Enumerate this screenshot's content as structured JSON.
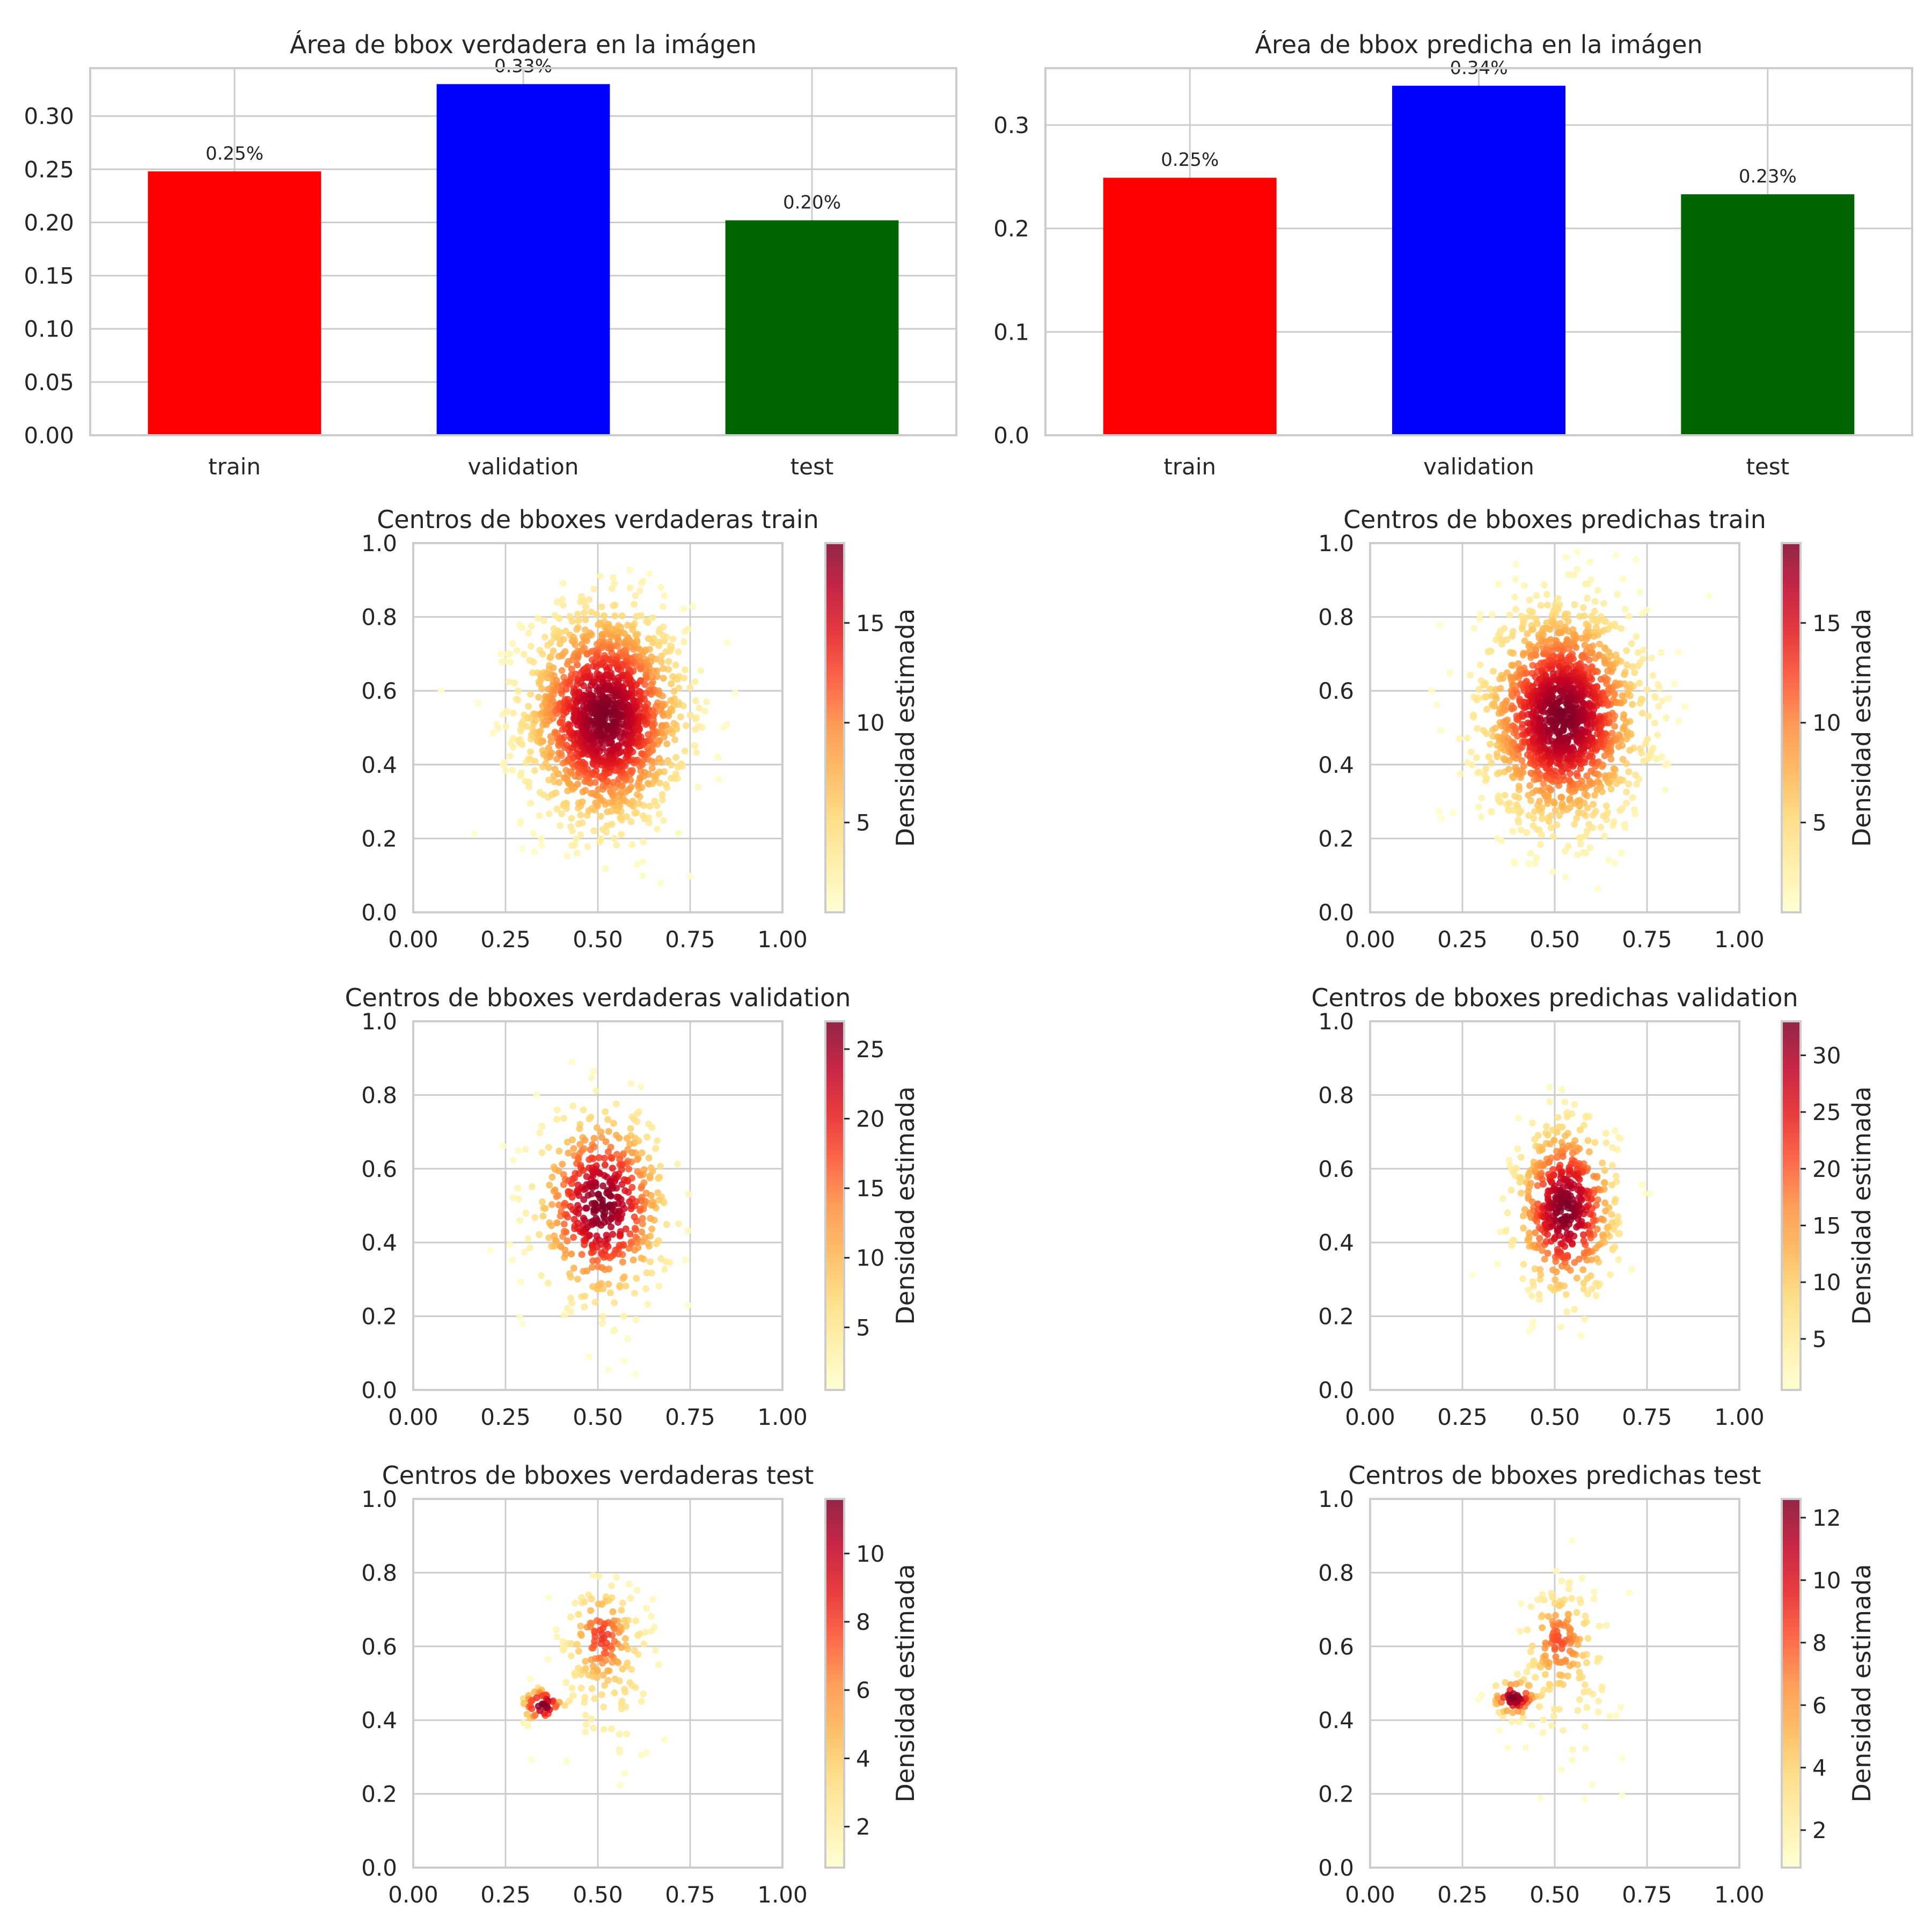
{
  "chart_data": [
    {
      "id": "area-true",
      "type": "bar",
      "title": "Área de bbox verdadera en la imágen",
      "categories": [
        "train",
        "validation",
        "test"
      ],
      "values": [
        0.248,
        0.33,
        0.202
      ],
      "value_labels": [
        "0.25%",
        "0.33%",
        "0.20%"
      ],
      "colors": [
        "#ff0000",
        "#0000ff",
        "#006400"
      ],
      "ylim": [
        0,
        0.345
      ],
      "yticks": [
        0.0,
        0.05,
        0.1,
        0.15,
        0.2,
        0.25,
        0.3
      ],
      "ytick_labels": [
        "0.00",
        "0.05",
        "0.10",
        "0.15",
        "0.20",
        "0.25",
        "0.30"
      ],
      "grid": true
    },
    {
      "id": "area-pred",
      "type": "bar",
      "title": "Área de bbox predicha en la imágen",
      "categories": [
        "train",
        "validation",
        "test"
      ],
      "values": [
        0.249,
        0.338,
        0.233
      ],
      "value_labels": [
        "0.25%",
        "0.34%",
        "0.23%"
      ],
      "colors": [
        "#ff0000",
        "#0000ff",
        "#006400"
      ],
      "ylim": [
        0,
        0.355
      ],
      "yticks": [
        0.0,
        0.1,
        0.2,
        0.3
      ],
      "ytick_labels": [
        "0.0",
        "0.1",
        "0.2",
        "0.3"
      ],
      "grid": true
    },
    {
      "id": "centers-true-train",
      "type": "scatter",
      "title": "Centros de bboxes verdaderas train",
      "xlim": [
        0,
        1
      ],
      "ylim": [
        0,
        1
      ],
      "ticks": [
        "0.00",
        "0.25",
        "0.50",
        "0.75",
        "1.00"
      ],
      "yticks": [
        "0.0",
        "0.2",
        "0.4",
        "0.6",
        "0.8",
        "1.0"
      ],
      "colorbar": {
        "label": "Densidad estimada",
        "min": 0.5,
        "max": 19,
        "ticks": [
          5,
          10,
          15
        ]
      },
      "clusters": [
        {
          "cx": 0.52,
          "cy": 0.53,
          "sx": 0.11,
          "sy": 0.15,
          "n": 1500
        }
      ],
      "grid": true
    },
    {
      "id": "centers-pred-train",
      "type": "scatter",
      "title": "Centros de bboxes predichas train",
      "xlim": [
        0,
        1
      ],
      "ylim": [
        0,
        1
      ],
      "ticks": [
        "0.00",
        "0.25",
        "0.50",
        "0.75",
        "1.00"
      ],
      "yticks": [
        "0.0",
        "0.2",
        "0.4",
        "0.6",
        "0.8",
        "1.0"
      ],
      "colorbar": {
        "label": "Densidad estimada",
        "min": 0.5,
        "max": 19,
        "ticks": [
          5,
          10,
          15
        ]
      },
      "clusters": [
        {
          "cx": 0.52,
          "cy": 0.53,
          "sx": 0.11,
          "sy": 0.15,
          "n": 1500
        }
      ],
      "grid": true
    },
    {
      "id": "centers-true-validation",
      "type": "scatter",
      "title": "Centros de bboxes verdaderas validation",
      "xlim": [
        0,
        1
      ],
      "ylim": [
        0,
        1
      ],
      "ticks": [
        "0.00",
        "0.25",
        "0.50",
        "0.75",
        "1.00"
      ],
      "yticks": [
        "0.0",
        "0.2",
        "0.4",
        "0.6",
        "0.8",
        "1.0"
      ],
      "colorbar": {
        "label": "Densidad estimada",
        "min": 0.5,
        "max": 27,
        "ticks": [
          5,
          10,
          15,
          20,
          25
        ]
      },
      "clusters": [
        {
          "cx": 0.51,
          "cy": 0.5,
          "sx": 0.09,
          "sy": 0.13,
          "n": 500
        }
      ],
      "grid": true
    },
    {
      "id": "centers-pred-validation",
      "type": "scatter",
      "title": "Centros de bboxes predichas validation",
      "xlim": [
        0,
        1
      ],
      "ylim": [
        0,
        1
      ],
      "ticks": [
        "0.00",
        "0.25",
        "0.50",
        "0.75",
        "1.00"
      ],
      "yticks": [
        "0.0",
        "0.2",
        "0.4",
        "0.6",
        "0.8",
        "1.0"
      ],
      "colorbar": {
        "label": "Densidad estimada",
        "min": 0.5,
        "max": 33,
        "ticks": [
          5,
          10,
          15,
          20,
          25,
          30
        ]
      },
      "clusters": [
        {
          "cx": 0.53,
          "cy": 0.49,
          "sx": 0.07,
          "sy": 0.12,
          "n": 500
        }
      ],
      "grid": true
    },
    {
      "id": "centers-true-test",
      "type": "scatter",
      "title": "Centros de bboxes verdaderas test",
      "xlim": [
        0,
        1
      ],
      "ylim": [
        0,
        1
      ],
      "ticks": [
        "0.00",
        "0.25",
        "0.50",
        "0.75",
        "1.00"
      ],
      "yticks": [
        "0.0",
        "0.2",
        "0.4",
        "0.6",
        "0.8",
        "1.0"
      ],
      "colorbar": {
        "label": "Densidad estimada",
        "min": 0.8,
        "max": 11.6,
        "ticks": [
          2,
          4,
          6,
          8,
          10
        ]
      },
      "clusters": [
        {
          "cx": 0.51,
          "cy": 0.63,
          "sx": 0.04,
          "sy": 0.06,
          "n": 70
        },
        {
          "cx": 0.35,
          "cy": 0.44,
          "sx": 0.03,
          "sy": 0.025,
          "n": 45
        },
        {
          "cx": 0.53,
          "cy": 0.55,
          "sx": 0.08,
          "sy": 0.13,
          "n": 110
        }
      ],
      "grid": true
    },
    {
      "id": "centers-pred-test",
      "type": "scatter",
      "title": "Centros de bboxes predichas test",
      "xlim": [
        0,
        1
      ],
      "ylim": [
        0,
        1
      ],
      "ticks": [
        "0.00",
        "0.25",
        "0.50",
        "0.75",
        "1.00"
      ],
      "yticks": [
        "0.0",
        "0.2",
        "0.4",
        "0.6",
        "0.8",
        "1.0"
      ],
      "colorbar": {
        "label": "Densidad estimada",
        "min": 0.8,
        "max": 12.6,
        "ticks": [
          2,
          4,
          6,
          8,
          10,
          12
        ]
      },
      "clusters": [
        {
          "cx": 0.51,
          "cy": 0.62,
          "sx": 0.04,
          "sy": 0.06,
          "n": 70
        },
        {
          "cx": 0.39,
          "cy": 0.46,
          "sx": 0.03,
          "sy": 0.025,
          "n": 50
        },
        {
          "cx": 0.53,
          "cy": 0.55,
          "sx": 0.08,
          "sy": 0.13,
          "n": 110
        }
      ],
      "grid": true
    }
  ]
}
